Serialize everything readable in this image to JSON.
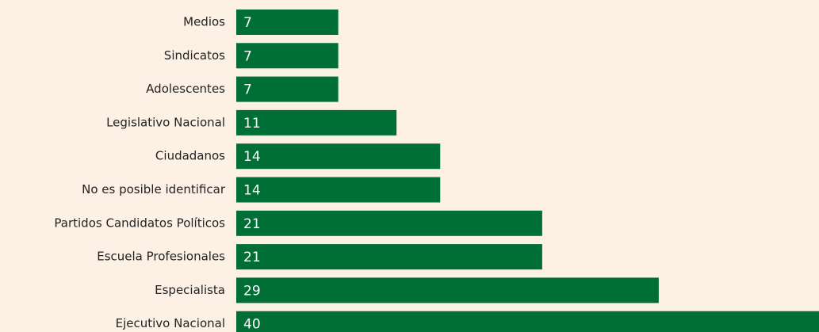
{
  "chart_data": {
    "type": "bar",
    "orientation": "horizontal",
    "categories": [
      "Medios",
      "Sindicatos",
      "Adolescentes",
      "Legislativo Nacional",
      "Ciudadanos",
      "No es posible identificar",
      "Partidos Candidatos Políticos",
      "Escuela Profesionales",
      "Especialista",
      "Ejecutivo Nacional"
    ],
    "values": [
      7,
      7,
      7,
      11,
      14,
      14,
      21,
      21,
      29,
      40
    ],
    "color": "#006f35"
  }
}
